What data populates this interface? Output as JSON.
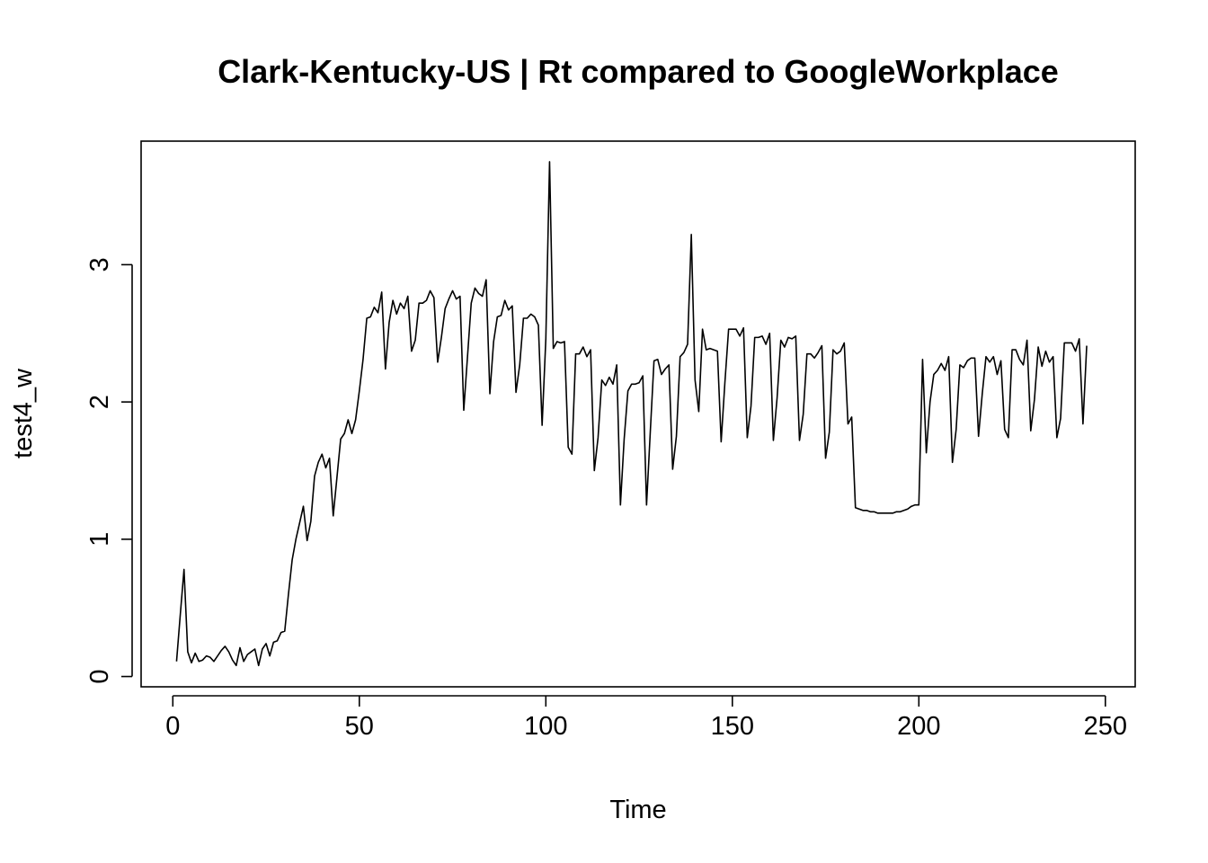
{
  "chart_data": {
    "type": "line",
    "title": "Clark-Kentucky-US | Rt compared to GoogleWorkplace",
    "xlabel": "Time",
    "ylabel": "test4_w",
    "xlim": [
      -8.5,
      258
    ],
    "ylim": [
      -0.075,
      3.9
    ],
    "x_ticks": [
      0,
      50,
      100,
      150,
      200,
      250
    ],
    "y_ticks": [
      0,
      1,
      2,
      3
    ],
    "grid": false,
    "legend": "none",
    "series_color": "#000000",
    "x_start": 1,
    "y": [
      0.11,
      0.45,
      0.78,
      0.18,
      0.1,
      0.17,
      0.11,
      0.12,
      0.15,
      0.14,
      0.11,
      0.15,
      0.19,
      0.22,
      0.18,
      0.12,
      0.08,
      0.21,
      0.11,
      0.16,
      0.18,
      0.2,
      0.08,
      0.2,
      0.24,
      0.15,
      0.25,
      0.26,
      0.32,
      0.33,
      0.6,
      0.85,
      1.0,
      1.12,
      1.24,
      0.99,
      1.13,
      1.46,
      1.56,
      1.62,
      1.52,
      1.59,
      1.17,
      1.45,
      1.73,
      1.77,
      1.87,
      1.77,
      1.87,
      2.08,
      2.31,
      2.61,
      2.62,
      2.69,
      2.65,
      2.8,
      2.24,
      2.58,
      2.74,
      2.64,
      2.72,
      2.68,
      2.77,
      2.37,
      2.45,
      2.72,
      2.72,
      2.74,
      2.81,
      2.76,
      2.29,
      2.47,
      2.68,
      2.75,
      2.81,
      2.75,
      2.77,
      1.94,
      2.33,
      2.72,
      2.83,
      2.79,
      2.77,
      2.89,
      2.06,
      2.44,
      2.62,
      2.63,
      2.74,
      2.67,
      2.7,
      2.07,
      2.27,
      2.61,
      2.61,
      2.64,
      2.62,
      2.56,
      1.83,
      2.46,
      3.75,
      2.39,
      2.44,
      2.43,
      2.44,
      1.67,
      1.62,
      2.35,
      2.35,
      2.4,
      2.33,
      2.38,
      1.5,
      1.74,
      2.16,
      2.12,
      2.18,
      2.13,
      2.27,
      1.25,
      1.73,
      2.08,
      2.13,
      2.13,
      2.14,
      2.19,
      1.25,
      1.78,
      2.3,
      2.31,
      2.2,
      2.24,
      2.27,
      1.51,
      1.75,
      2.33,
      2.36,
      2.42,
      3.22,
      2.16,
      1.93,
      2.53,
      2.38,
      2.39,
      2.38,
      2.37,
      1.71,
      2.14,
      2.53,
      2.53,
      2.53,
      2.48,
      2.54,
      1.74,
      1.97,
      2.47,
      2.47,
      2.48,
      2.42,
      2.5,
      1.72,
      2.03,
      2.45,
      2.4,
      2.47,
      2.46,
      2.48,
      1.72,
      1.91,
      2.35,
      2.35,
      2.32,
      2.36,
      2.41,
      1.59,
      1.78,
      2.38,
      2.35,
      2.37,
      2.43,
      1.84,
      1.89,
      1.23,
      1.22,
      1.21,
      1.21,
      1.2,
      1.2,
      1.19,
      1.19,
      1.19,
      1.19,
      1.19,
      1.2,
      1.2,
      1.21,
      1.22,
      1.24,
      1.25,
      1.25,
      2.31,
      1.63,
      2.0,
      2.2,
      2.23,
      2.28,
      2.23,
      2.33,
      1.56,
      1.8,
      2.27,
      2.25,
      2.3,
      2.32,
      2.32,
      1.75,
      2.06,
      2.33,
      2.29,
      2.33,
      2.2,
      2.3,
      1.8,
      1.74,
      2.38,
      2.38,
      2.31,
      2.27,
      2.45,
      1.79,
      2.02,
      2.4,
      2.26,
      2.37,
      2.29,
      2.33,
      1.74,
      1.88,
      2.43,
      2.43,
      2.43,
      2.37,
      2.46,
      1.84,
      2.41
    ]
  }
}
